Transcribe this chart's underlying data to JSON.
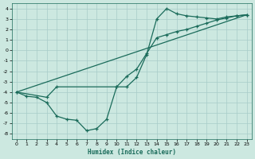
{
  "xlabel": "Humidex (Indice chaleur)",
  "bg_color": "#cce8e0",
  "grid_color": "#a8ccc8",
  "line_color": "#1a6b5a",
  "xlim": [
    -0.5,
    23.5
  ],
  "ylim": [
    -8.5,
    4.5
  ],
  "xticks": [
    0,
    1,
    2,
    3,
    4,
    5,
    6,
    7,
    8,
    9,
    10,
    11,
    12,
    13,
    14,
    15,
    16,
    17,
    18,
    19,
    20,
    21,
    22,
    23
  ],
  "yticks": [
    -8,
    -7,
    -6,
    -5,
    -4,
    -3,
    -2,
    -1,
    0,
    1,
    2,
    3,
    4
  ],
  "line1_x": [
    0,
    1,
    2,
    3,
    4,
    5,
    6,
    7,
    8,
    9,
    10,
    11,
    12,
    13,
    14,
    15,
    16,
    17,
    18,
    19,
    20,
    21,
    22,
    23
  ],
  "line1_y": [
    -4.0,
    -4.4,
    -4.5,
    -5.0,
    -6.3,
    -6.6,
    -6.7,
    -7.7,
    -7.5,
    -6.6,
    -3.5,
    -3.5,
    -2.6,
    -0.4,
    3.0,
    4.0,
    3.5,
    3.3,
    3.2,
    3.1,
    3.0,
    3.2,
    3.3,
    3.4
  ],
  "line2_x": [
    0,
    23
  ],
  "line2_y": [
    -4.0,
    3.4
  ],
  "line3_x": [
    0,
    3,
    4,
    10,
    11,
    12,
    13,
    14,
    15,
    16,
    17,
    18,
    19,
    20,
    21,
    22,
    23
  ],
  "line3_y": [
    -4.0,
    -4.5,
    -3.5,
    -3.5,
    -2.5,
    -1.8,
    -0.3,
    1.2,
    1.5,
    1.8,
    2.0,
    2.3,
    2.6,
    2.9,
    3.1,
    3.3,
    3.4
  ]
}
